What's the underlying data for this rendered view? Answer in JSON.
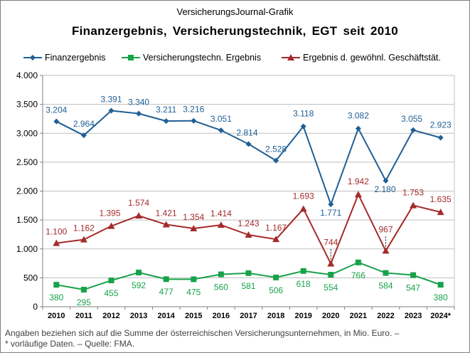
{
  "source_label": "VersicherungsJournal-Grafik",
  "chart_data": {
    "type": "line",
    "title": "Finanzergebnis,  Versicherungstechnik,  EGT seit 2010",
    "xlabel": "",
    "ylabel": "",
    "categories": [
      "2010",
      "2011",
      "2012",
      "2013",
      "2014",
      "2015",
      "2016",
      "2017",
      "2018",
      "2019",
      "2020",
      "2021",
      "2022",
      "2023",
      "2024*"
    ],
    "ylim": [
      0,
      4000
    ],
    "yticks": [
      0,
      500,
      1000,
      1500,
      2000,
      2500,
      3000,
      3500,
      4000
    ],
    "ytick_labels": [
      "0",
      "500",
      "1.000",
      "1.500",
      "2.000",
      "2.500",
      "3.000",
      "3.500",
      "4.000"
    ],
    "grid": true,
    "legend_position": "top",
    "series": [
      {
        "name": "Finanzergebnis",
        "color": "#1f5f96",
        "marker": "diamond",
        "values": [
          3204,
          2964,
          3391,
          3340,
          3211,
          3216,
          3051,
          2814,
          2528,
          3118,
          1771,
          3082,
          2180,
          3055,
          2923
        ],
        "labels": [
          "3.204",
          "2.964",
          "3.391",
          "3.340",
          "3.211",
          "3.216",
          "3.051",
          "2.814",
          "2.528",
          "3.118",
          "1.771",
          "3.082",
          "2.180",
          "3.055",
          "2.923"
        ]
      },
      {
        "name": "Versicherungstechn. Ergebnis",
        "color": "#17a24a",
        "marker": "square",
        "values": [
          380,
          295,
          455,
          592,
          477,
          475,
          560,
          581,
          506,
          618,
          554,
          766,
          584,
          547,
          380
        ],
        "labels": [
          "380",
          "295",
          "455",
          "592",
          "477",
          "475",
          "560",
          "581",
          "506",
          "618",
          "554",
          "766",
          "584",
          "547",
          "380"
        ]
      },
      {
        "name": "Ergebnis d. gewöhnl. Geschäftstät.",
        "color": "#a52a2a",
        "marker": "triangle",
        "values": [
          1100,
          1162,
          1395,
          1574,
          1421,
          1354,
          1414,
          1243,
          1167,
          1693,
          744,
          1942,
          967,
          1753,
          1635
        ],
        "labels": [
          "1.100",
          "1.162",
          "1.395",
          "1.574",
          "1.421",
          "1.354",
          "1.414",
          "1.243",
          "1.167",
          "1.693",
          "744",
          "1.942",
          "967",
          "1.753",
          "1.635"
        ]
      }
    ]
  },
  "footnote": {
    "line1": "Angaben  beziehen  sich auf die Summe der österreichischen Versicherungsunternehmen,   in Mio. Euro. –",
    "line2": "* vorläufige  Daten. – Quelle: FMA."
  }
}
